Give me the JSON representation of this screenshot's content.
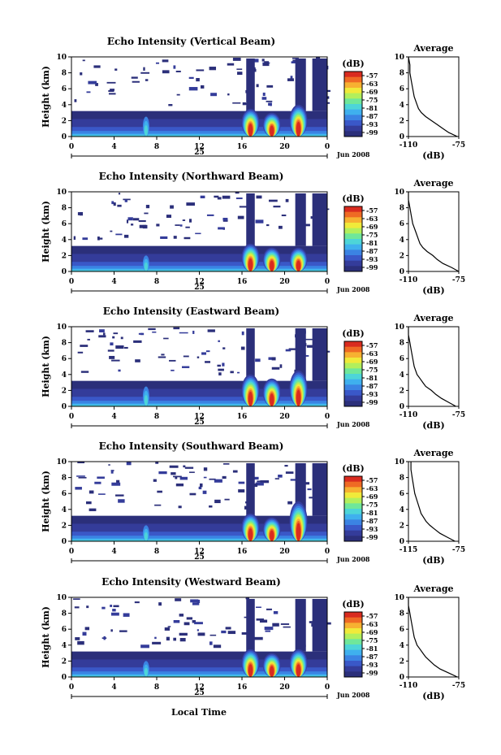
{
  "colors": {
    "colormap": [
      "#2b2f7a",
      "#343c9a",
      "#3a58c8",
      "#3b83e3",
      "#3fb0ee",
      "#4dd5d8",
      "#6fe79a",
      "#b2ef5c",
      "#f0ea3a",
      "#f7b131",
      "#ef6a24",
      "#d92b1f"
    ],
    "background": "#ffffff",
    "line": "#000000"
  },
  "figure": {
    "xlabel_bottom": "Local Time"
  },
  "chart_data": [
    {
      "type": "heatmap",
      "title": "Echo Intensity (Vertical Beam)",
      "ylabel": "Height (km)",
      "ylim": [
        0,
        10
      ],
      "yticks": [
        "0",
        "2",
        "4",
        "6",
        "8",
        "10"
      ],
      "xlim": [
        0,
        24
      ],
      "xticks": [
        "0",
        "4",
        "8",
        "12",
        "16",
        "20",
        "0"
      ],
      "day_label": "25",
      "month_label": "Jun 2008",
      "colorbar": {
        "label": "(dB)",
        "ticks": [
          "-57",
          "-63",
          "-69",
          "-75",
          "-81",
          "-87",
          "-93",
          "-99"
        ]
      },
      "profile": {
        "title": "Average",
        "xlabel": "(dB)",
        "xticks": [
          "-110",
          "-75"
        ],
        "yticks": [
          "0",
          "2",
          "4",
          "6",
          "8",
          "10"
        ],
        "height_km": [
          0,
          0.5,
          1,
          1.5,
          2,
          2.5,
          3,
          3.5,
          4,
          5,
          6,
          7,
          8,
          9,
          10
        ],
        "db": [
          -76,
          -82,
          -86,
          -90,
          -94,
          -98,
          -101,
          -103,
          -104,
          -106,
          -107,
          -108,
          -109,
          -109,
          -110
        ]
      },
      "features": [
        {
          "time_h": 7,
          "top_km": 2.5
        },
        {
          "time_h": 16.8,
          "top_km": 3.5
        },
        {
          "time_h": 18.8,
          "top_km": 3.0
        },
        {
          "time_h": 21.3,
          "top_km": 4.0
        }
      ]
    },
    {
      "type": "heatmap",
      "title": "Echo Intensity (Northward Beam)",
      "ylabel": "Height (km)",
      "ylim": [
        0,
        10
      ],
      "yticks": [
        "0",
        "2",
        "4",
        "6",
        "8",
        "10"
      ],
      "xlim": [
        0,
        24
      ],
      "xticks": [
        "0",
        "4",
        "8",
        "12",
        "16",
        "20",
        "0"
      ],
      "day_label": "25",
      "month_label": "Jun 2008",
      "colorbar": {
        "label": "(dB)",
        "ticks": [
          "-57",
          "-63",
          "-69",
          "-75",
          "-81",
          "-87",
          "-93",
          "-99"
        ]
      },
      "profile": {
        "title": "Average",
        "xlabel": "(dB)",
        "xticks": [
          "-110",
          "-75"
        ],
        "yticks": [
          "0",
          "2",
          "4",
          "6",
          "8",
          "10"
        ],
        "height_km": [
          0,
          0.5,
          1,
          1.5,
          2,
          2.5,
          3,
          3.5,
          4,
          5,
          6,
          7,
          8,
          9,
          10
        ],
        "db": [
          -75,
          -80,
          -86,
          -90,
          -93,
          -97,
          -100,
          -102,
          -103,
          -105,
          -107,
          -108,
          -109,
          -110,
          -110
        ]
      },
      "features": [
        {
          "time_h": 7,
          "top_km": 2.0
        },
        {
          "time_h": 16.8,
          "top_km": 3.5
        },
        {
          "time_h": 18.8,
          "top_km": 3.0
        },
        {
          "time_h": 21.3,
          "top_km": 3.0
        }
      ]
    },
    {
      "type": "heatmap",
      "title": "Echo Intensity (Eastward Beam)",
      "ylabel": "Height (km)",
      "ylim": [
        0,
        10
      ],
      "yticks": [
        "0",
        "2",
        "4",
        "6",
        "8",
        "10"
      ],
      "xlim": [
        0,
        24
      ],
      "xticks": [
        "0",
        "4",
        "8",
        "12",
        "16",
        "20",
        "0"
      ],
      "day_label": "25",
      "month_label": "Jun 2008",
      "colorbar": {
        "label": "(dB)",
        "ticks": [
          "-57",
          "-63",
          "-69",
          "-75",
          "-81",
          "-87",
          "-93",
          "-99"
        ]
      },
      "profile": {
        "title": "Average",
        "xlabel": "(dB)",
        "xticks": [
          "-110",
          "-75"
        ],
        "yticks": [
          "0",
          "2",
          "4",
          "6",
          "8",
          "10"
        ],
        "height_km": [
          0,
          0.5,
          1,
          1.5,
          2,
          2.5,
          3,
          3.5,
          4,
          5,
          6,
          7,
          8,
          9,
          10
        ],
        "db": [
          -77,
          -82,
          -87,
          -91,
          -94,
          -98,
          -100,
          -102,
          -104,
          -106,
          -107,
          -108,
          -109,
          -110,
          -110
        ]
      },
      "features": [
        {
          "time_h": 7,
          "top_km": 2.5
        },
        {
          "time_h": 16.8,
          "top_km": 4.0
        },
        {
          "time_h": 18.8,
          "top_km": 3.5
        },
        {
          "time_h": 21.3,
          "top_km": 4.5
        }
      ]
    },
    {
      "type": "heatmap",
      "title": "Echo Intensity (Southward Beam)",
      "ylabel": "Height (km)",
      "ylim": [
        0,
        10
      ],
      "yticks": [
        "0",
        "2",
        "4",
        "6",
        "8",
        "10"
      ],
      "xlim": [
        0,
        24
      ],
      "xticks": [
        "0",
        "4",
        "8",
        "12",
        "16",
        "20",
        "0"
      ],
      "day_label": "25",
      "month_label": "Jun 2008",
      "colorbar": {
        "label": "(dB)",
        "ticks": [
          "-57",
          "-63",
          "-69",
          "-75",
          "-81",
          "-87",
          "-93",
          "-99"
        ]
      },
      "profile": {
        "title": "Average",
        "xlabel": "(dB)",
        "xticks": [
          "-115",
          "-75"
        ],
        "yticks": [
          "0",
          "2",
          "4",
          "6",
          "8",
          "10"
        ],
        "height_km": [
          0,
          0.5,
          1,
          1.5,
          2,
          2.5,
          3,
          3.5,
          4,
          5,
          6,
          7,
          8,
          9,
          10
        ],
        "db": [
          -78,
          -84,
          -90,
          -94,
          -98,
          -101,
          -103,
          -105,
          -106,
          -108,
          -110,
          -111,
          -112,
          -113,
          -113
        ]
      },
      "features": [
        {
          "time_h": 7,
          "top_km": 2.0
        },
        {
          "time_h": 16.8,
          "top_km": 3.5
        },
        {
          "time_h": 18.8,
          "top_km": 3.0
        },
        {
          "time_h": 21.3,
          "top_km": 5.0
        }
      ]
    },
    {
      "type": "heatmap",
      "title": "Echo Intensity (Westward Beam)",
      "ylabel": "Height (km)",
      "ylim": [
        0,
        10
      ],
      "yticks": [
        "0",
        "2",
        "4",
        "6",
        "8",
        "10"
      ],
      "xlim": [
        0,
        24
      ],
      "xticks": [
        "0",
        "4",
        "8",
        "12",
        "16",
        "20",
        "0"
      ],
      "day_label": "25",
      "month_label": "Jun 2008",
      "colorbar": {
        "label": "(dB)",
        "ticks": [
          "-57",
          "-63",
          "-69",
          "-75",
          "-81",
          "-87",
          "-93",
          "-99"
        ]
      },
      "profile": {
        "title": "Average",
        "xlabel": "(dB)",
        "xticks": [
          "-110",
          "-75"
        ],
        "yticks": [
          "0",
          "2",
          "4",
          "6",
          "8",
          "10"
        ],
        "height_km": [
          0,
          0.5,
          1,
          1.5,
          2,
          2.5,
          3,
          3.5,
          4,
          5,
          6,
          7,
          8,
          9,
          10
        ],
        "db": [
          -76,
          -82,
          -88,
          -92,
          -95,
          -98,
          -100,
          -102,
          -104,
          -106,
          -107,
          -108,
          -109,
          -110,
          -110
        ]
      },
      "features": [
        {
          "time_h": 7,
          "top_km": 2.0
        },
        {
          "time_h": 16.8,
          "top_km": 3.5
        },
        {
          "time_h": 18.8,
          "top_km": 3.0
        },
        {
          "time_h": 21.3,
          "top_km": 3.5
        }
      ]
    }
  ]
}
